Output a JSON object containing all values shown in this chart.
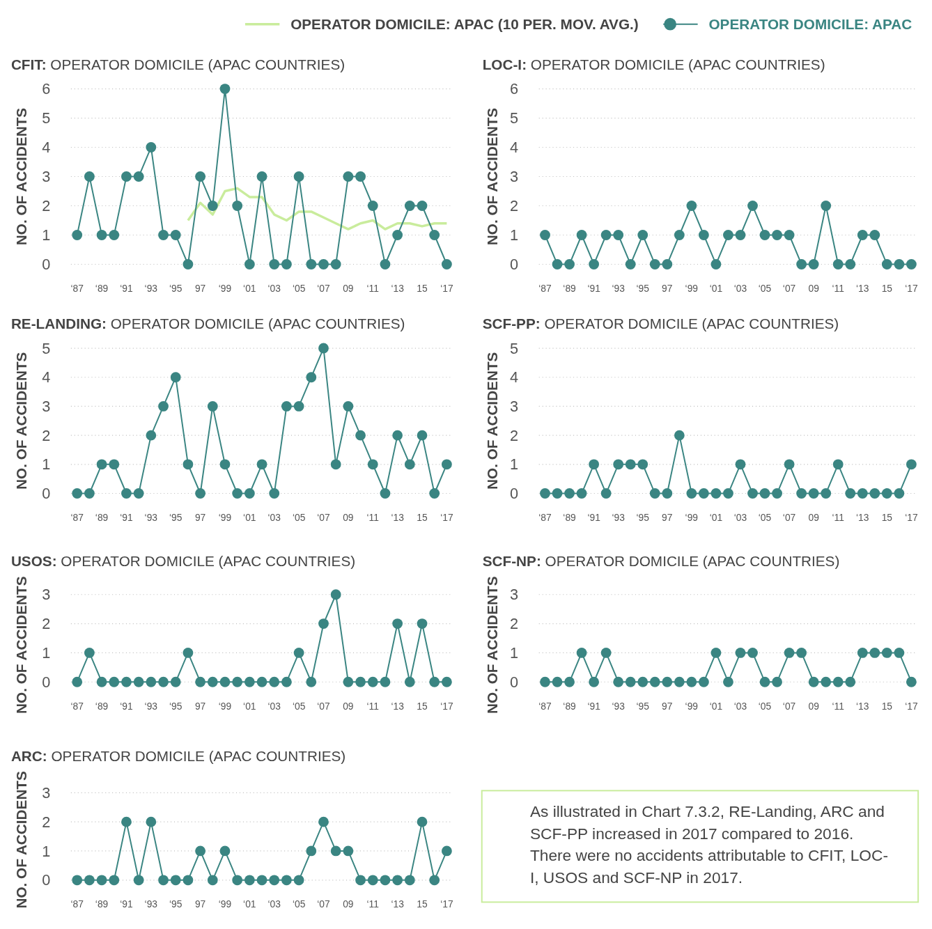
{
  "chart_data": [
    {
      "type": "line",
      "title": "CFIT: OPERATOR DOMICILE (APAC COUNTRIES)",
      "ylabel": "NO. OF ACCIDENTS",
      "categories": [
        "‘87",
        null,
        "‘89",
        null,
        "‘91",
        null,
        "‘93",
        null,
        "‘95",
        null,
        "97",
        null,
        "‘99",
        null,
        "‘01",
        null,
        "‘03",
        null,
        "‘05",
        null,
        "‘07",
        null,
        "09",
        null,
        "‘11",
        null,
        "‘13",
        null,
        "15",
        null,
        "‘17"
      ],
      "ylim": [
        0,
        6
      ],
      "yticks": [
        0,
        1,
        2,
        3,
        4,
        5,
        6
      ],
      "grid": "y",
      "marker": "circle",
      "legend": "top",
      "series": [
        {
          "name": "OPERATOR DOMICILE: APAC (10 PER. MOV. AVG.)",
          "color": "#c9ec9c",
          "marker": "none",
          "values": [
            null,
            null,
            null,
            null,
            null,
            null,
            null,
            null,
            null,
            1.5,
            2.1,
            1.7,
            2.5,
            2.6,
            2.3,
            2.3,
            1.7,
            1.5,
            1.8,
            1.8,
            1.6,
            1.4,
            1.2,
            1.4,
            1.5,
            1.2,
            1.4,
            1.4,
            1.3,
            1.4,
            1.4
          ]
        },
        {
          "name": "OPERATOR DOMICILE: APAC",
          "color": "#3a8582",
          "values": [
            1,
            3,
            1,
            1,
            3,
            3,
            4,
            1,
            1,
            0,
            3,
            2,
            6,
            2,
            0,
            3,
            0,
            0,
            3,
            0,
            0,
            0,
            3,
            3,
            2,
            0,
            1,
            2,
            2,
            1,
            0
          ]
        }
      ]
    },
    {
      "type": "line",
      "title": "LOC-I: OPERATOR DOMICILE (APAC COUNTRIES)",
      "ylabel": "NO. OF ACCIDENTS",
      "categories": [
        "‘87",
        null,
        "‘89",
        null,
        "‘91",
        null,
        "‘93",
        null,
        "‘95",
        null,
        "97",
        null,
        "‘99",
        null,
        "‘01",
        null,
        "‘03",
        null,
        "‘05",
        null,
        "‘07",
        null,
        "09",
        null,
        "‘11",
        null,
        "‘13",
        null,
        "15",
        null,
        "‘17"
      ],
      "ylim": [
        0,
        6
      ],
      "yticks": [
        0,
        1,
        2,
        3,
        4,
        5,
        6
      ],
      "grid": "y",
      "marker": "circle",
      "series": [
        {
          "color": "#3a8582",
          "values": [
            1,
            0,
            0,
            1,
            0,
            1,
            1,
            0,
            1,
            0,
            0,
            1,
            2,
            1,
            0,
            1,
            1,
            2,
            1,
            1,
            1,
            0,
            0,
            2,
            0,
            0,
            1,
            1,
            0,
            0,
            0
          ]
        }
      ]
    },
    {
      "type": "line",
      "title": "RE-LANDING: OPERATOR DOMICILE (APAC COUNTRIES)",
      "ylabel": "NO. OF ACCIDENTS",
      "categories": [
        "‘87",
        null,
        "‘89",
        null,
        "‘91",
        null,
        "‘93",
        null,
        "‘95",
        null,
        "97",
        null,
        "‘99",
        null,
        "‘01",
        null,
        "‘03",
        null,
        "‘05",
        null,
        "‘07",
        null,
        "09",
        null,
        "‘11",
        null,
        "‘13",
        null,
        "15",
        null,
        "‘17"
      ],
      "ylim": [
        0,
        5
      ],
      "yticks": [
        0,
        1,
        2,
        3,
        4,
        5
      ],
      "grid": "y",
      "marker": "circle",
      "series": [
        {
          "color": "#3a8582",
          "values": [
            0,
            0,
            1,
            1,
            0,
            0,
            2,
            3,
            4,
            1,
            0,
            3,
            1,
            0,
            0,
            1,
            0,
            3,
            3,
            4,
            5,
            1,
            3,
            2,
            1,
            0,
            2,
            1,
            2,
            0,
            1
          ]
        }
      ]
    },
    {
      "type": "line",
      "title": "SCF-PP: OPERATOR DOMICILE (APAC COUNTRIES)",
      "ylabel": "NO. OF ACCIDENTS",
      "categories": [
        "‘87",
        null,
        "‘89",
        null,
        "‘91",
        null,
        "‘93",
        null,
        "‘95",
        null,
        "97",
        null,
        "‘99",
        null,
        "‘01",
        null,
        "‘03",
        null,
        "‘05",
        null,
        "‘07",
        null,
        "09",
        null,
        "‘11",
        null,
        "‘13",
        null,
        "15",
        null,
        "‘17"
      ],
      "ylim": [
        0,
        5
      ],
      "yticks": [
        0,
        1,
        2,
        3,
        4,
        5
      ],
      "grid": "y",
      "marker": "circle",
      "series": [
        {
          "color": "#3a8582",
          "values": [
            0,
            0,
            0,
            0,
            1,
            0,
            1,
            1,
            1,
            0,
            0,
            2,
            0,
            0,
            0,
            0,
            1,
            0,
            0,
            0,
            1,
            0,
            0,
            0,
            1,
            0,
            0,
            0,
            0,
            0,
            1
          ]
        }
      ]
    },
    {
      "type": "line",
      "title": "USOS: OPERATOR DOMICILE (APAC COUNTRIES)",
      "ylabel": "NO. OF ACCIDENTS",
      "categories": [
        "‘87",
        null,
        "‘89",
        null,
        "‘91",
        null,
        "‘93",
        null,
        "‘95",
        null,
        "97",
        null,
        "‘99",
        null,
        "‘01",
        null,
        "‘03",
        null,
        "‘05",
        null,
        "‘07",
        null,
        "09",
        null,
        "‘11",
        null,
        "‘13",
        null,
        "15",
        null,
        "‘17"
      ],
      "ylim": [
        0,
        3
      ],
      "yticks": [
        0,
        1,
        2,
        3
      ],
      "grid": "y",
      "marker": "circle",
      "series": [
        {
          "color": "#3a8582",
          "values": [
            0,
            1,
            0,
            0,
            0,
            0,
            0,
            0,
            0,
            1,
            0,
            0,
            0,
            0,
            0,
            0,
            0,
            0,
            1,
            0,
            2,
            3,
            0,
            0,
            0,
            0,
            2,
            0,
            2,
            0,
            0
          ]
        }
      ]
    },
    {
      "type": "line",
      "title": "SCF-NP: OPERATOR DOMICILE (APAC COUNTRIES)",
      "ylabel": "NO. OF ACCIDENTS",
      "categories": [
        "‘87",
        null,
        "‘89",
        null,
        "‘91",
        null,
        "‘93",
        null,
        "‘95",
        null,
        "97",
        null,
        "‘99",
        null,
        "‘01",
        null,
        "‘03",
        null,
        "‘05",
        null,
        "‘07",
        null,
        "09",
        null,
        "‘11",
        null,
        "‘13",
        null,
        "15",
        null,
        "‘17"
      ],
      "ylim": [
        0,
        3
      ],
      "yticks": [
        0,
        1,
        2,
        3
      ],
      "grid": "y",
      "marker": "circle",
      "series": [
        {
          "color": "#3a8582",
          "values": [
            0,
            0,
            0,
            1,
            0,
            1,
            0,
            0,
            0,
            0,
            0,
            0,
            0,
            0,
            1,
            0,
            1,
            1,
            0,
            0,
            1,
            1,
            0,
            0,
            0,
            0,
            1,
            1,
            1,
            1,
            0
          ]
        }
      ]
    },
    {
      "type": "line",
      "title": "ARC: OPERATOR DOMICILE (APAC COUNTRIES)",
      "ylabel": "NO. OF ACCIDENTS",
      "categories": [
        "‘87",
        null,
        "‘89",
        null,
        "‘91",
        null,
        "‘93",
        null,
        "‘95",
        null,
        "97",
        null,
        "‘99",
        null,
        "‘01",
        null,
        "‘03",
        null,
        "‘05",
        null,
        "‘07",
        null,
        "09",
        null,
        "‘11",
        null,
        "‘13",
        null,
        "15",
        null,
        "‘17"
      ],
      "ylim": [
        0,
        3
      ],
      "yticks": [
        0,
        1,
        2,
        3
      ],
      "grid": "y",
      "marker": "circle",
      "series": [
        {
          "color": "#3a8582",
          "values": [
            0,
            0,
            0,
            0,
            2,
            0,
            2,
            0,
            0,
            0,
            1,
            0,
            1,
            0,
            0,
            0,
            0,
            0,
            0,
            1,
            2,
            1,
            1,
            0,
            0,
            0,
            0,
            0,
            2,
            0,
            1
          ]
        }
      ]
    },
    {
      "type": "other",
      "annotations": [
        "As illustrated in Chart 7.3.2, RE-Landing, ARC and SCF-PP increased in 2017 compared to 2016. There were no accidents attributable to CFIT, LOC-I, USOS and SCF-NP in 2017."
      ]
    }
  ]
}
